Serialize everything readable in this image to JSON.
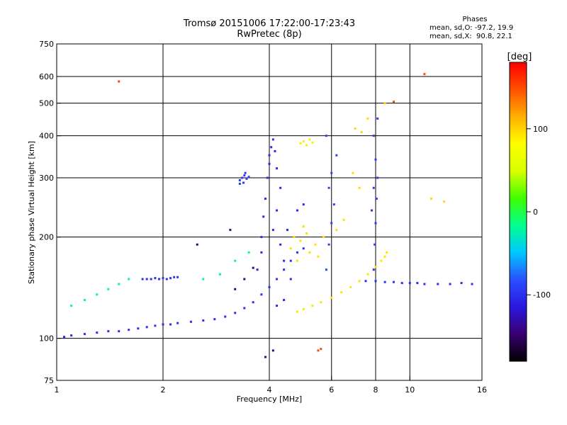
{
  "header": {
    "title": "Tromsø 20151006 17:22:00-17:23:43",
    "subtitle": "RwPretec (8p)"
  },
  "phase_stats": {
    "label": "Phases",
    "o_line": "mean, sd,O: -97.2, 19.9",
    "x_line": "mean, sd,X:  90.8, 22.1"
  },
  "colorbar": {
    "label": "[deg]",
    "ticks": [
      {
        "value": 100,
        "label": "100"
      },
      {
        "value": 0,
        "label": "0"
      },
      {
        "value": -100,
        "label": "-100"
      }
    ],
    "range": [
      -180,
      180
    ],
    "stops": [
      "#000000",
      "#3a0070",
      "#2a18e0",
      "#2a50ff",
      "#00c8ff",
      "#00ff90",
      "#40ff00",
      "#d8ff00",
      "#ffff00",
      "#ffb000",
      "#ff5000",
      "#ff0000"
    ]
  },
  "chart_data": {
    "type": "scatter",
    "xlabel": "Frequency [MHz]",
    "ylabel": "Stationary phase Virtual Height [km]",
    "xscale": "log",
    "yscale": "log",
    "xlim": [
      1,
      16
    ],
    "ylim": [
      75,
      750
    ],
    "xticks": [
      {
        "value": 1,
        "label": "1"
      },
      {
        "value": 2,
        "label": "2"
      },
      {
        "value": 4,
        "label": "4"
      },
      {
        "value": 6,
        "label": "6"
      },
      {
        "value": 8,
        "label": "8"
      },
      {
        "value": 10,
        "label": "10"
      },
      {
        "value": 16,
        "label": "16"
      }
    ],
    "yticks": [
      {
        "value": 75,
        "label": "75"
      },
      {
        "value": 100,
        "label": "100"
      },
      {
        "value": 200,
        "label": "200"
      },
      {
        "value": 300,
        "label": "300"
      },
      {
        "value": 400,
        "label": "400"
      },
      {
        "value": 500,
        "label": "500"
      },
      {
        "value": 600,
        "label": "600"
      },
      {
        "value": 750,
        "label": "750"
      }
    ],
    "grid_x": [
      2,
      4,
      6,
      8,
      10
    ],
    "grid_y": [
      100,
      200,
      300,
      400,
      500,
      600
    ],
    "point_groups": [
      {
        "name": "o-trace-F",
        "phase": -100,
        "points": [
          [
            1.05,
            101
          ],
          [
            1.1,
            102
          ],
          [
            1.2,
            103
          ],
          [
            1.3,
            104
          ],
          [
            1.4,
            105
          ],
          [
            1.5,
            105
          ],
          [
            1.6,
            106
          ],
          [
            1.7,
            107
          ],
          [
            1.8,
            108
          ],
          [
            1.9,
            109
          ],
          [
            2.0,
            110
          ],
          [
            2.1,
            110
          ],
          [
            2.2,
            111
          ],
          [
            2.4,
            112
          ],
          [
            2.6,
            113
          ],
          [
            2.8,
            114
          ],
          [
            3.0,
            116
          ],
          [
            3.2,
            119
          ],
          [
            3.4,
            123
          ],
          [
            3.6,
            128
          ],
          [
            3.8,
            135
          ],
          [
            4.0,
            142
          ],
          [
            4.2,
            150
          ],
          [
            4.4,
            160
          ],
          [
            4.6,
            170
          ],
          [
            4.8,
            180
          ],
          [
            5.0,
            185
          ]
        ]
      },
      {
        "name": "o-cusp-4MHz",
        "phase": -105,
        "points": [
          [
            3.7,
            160
          ],
          [
            3.8,
            180
          ],
          [
            3.8,
            200
          ],
          [
            3.85,
            230
          ],
          [
            3.9,
            260
          ],
          [
            3.95,
            300
          ],
          [
            4.0,
            330
          ],
          [
            4.0,
            350
          ],
          [
            4.05,
            370
          ],
          [
            4.1,
            390
          ],
          [
            4.15,
            360
          ],
          [
            4.2,
            320
          ],
          [
            4.3,
            280
          ],
          [
            4.2,
            240
          ],
          [
            4.1,
            210
          ],
          [
            4.3,
            190
          ],
          [
            4.4,
            170
          ],
          [
            4.6,
            150
          ],
          [
            4.4,
            130
          ],
          [
            4.2,
            125
          ],
          [
            4.5,
            210
          ],
          [
            4.8,
            240
          ],
          [
            5.0,
            250
          ]
        ]
      },
      {
        "name": "o-cloud-300km",
        "phase": -95,
        "points": [
          [
            3.3,
            295
          ],
          [
            3.35,
            300
          ],
          [
            3.4,
            305
          ],
          [
            3.45,
            298
          ],
          [
            3.5,
            302
          ],
          [
            3.38,
            290
          ],
          [
            3.42,
            310
          ],
          [
            3.3,
            288
          ]
        ]
      },
      {
        "name": "o-sporadic-150km",
        "phase": -98,
        "points": [
          [
            1.75,
            150
          ],
          [
            1.8,
            150
          ],
          [
            1.85,
            150
          ],
          [
            1.9,
            151
          ],
          [
            1.95,
            150
          ],
          [
            2.0,
            151
          ],
          [
            2.05,
            150
          ],
          [
            2.1,
            151
          ],
          [
            2.15,
            152
          ],
          [
            2.2,
            152
          ]
        ]
      },
      {
        "name": "o-high-freq-band",
        "phase": -100,
        "points": [
          [
            7.5,
            148
          ],
          [
            8.0,
            148
          ],
          [
            8.5,
            147
          ],
          [
            9.0,
            147
          ],
          [
            9.5,
            146
          ],
          [
            10.0,
            146
          ],
          [
            10.5,
            146
          ],
          [
            11.0,
            145
          ],
          [
            12.0,
            145
          ],
          [
            13.0,
            145
          ],
          [
            14.0,
            146
          ],
          [
            15.0,
            145
          ]
        ]
      },
      {
        "name": "o-column-8MHz",
        "phase": -95,
        "points": [
          [
            7.9,
            160
          ],
          [
            7.95,
            190
          ],
          [
            8.0,
            220
          ],
          [
            8.05,
            260
          ],
          [
            8.1,
            300
          ],
          [
            8.0,
            340
          ],
          [
            7.9,
            400
          ],
          [
            8.1,
            450
          ],
          [
            7.8,
            240
          ],
          [
            7.9,
            280
          ]
        ]
      },
      {
        "name": "o-column-6MHz",
        "phase": -90,
        "points": [
          [
            5.8,
            160
          ],
          [
            5.9,
            190
          ],
          [
            6.0,
            220
          ],
          [
            6.1,
            250
          ],
          [
            5.9,
            280
          ],
          [
            6.0,
            310
          ],
          [
            6.2,
            350
          ],
          [
            5.8,
            400
          ]
        ]
      },
      {
        "name": "x-trace",
        "phase": 92,
        "points": [
          [
            4.8,
            120
          ],
          [
            5.0,
            122
          ],
          [
            5.3,
            125
          ],
          [
            5.6,
            128
          ],
          [
            6.0,
            132
          ],
          [
            6.4,
            137
          ],
          [
            6.8,
            142
          ],
          [
            7.2,
            148
          ],
          [
            7.6,
            155
          ],
          [
            8.0,
            163
          ],
          [
            8.3,
            170
          ],
          [
            8.5,
            175
          ],
          [
            8.6,
            180
          ]
        ]
      },
      {
        "name": "x-cloud-180km",
        "phase": 95,
        "points": [
          [
            4.6,
            185
          ],
          [
            4.9,
            195
          ],
          [
            5.1,
            205
          ],
          [
            5.4,
            190
          ],
          [
            5.7,
            200
          ],
          [
            5.2,
            180
          ],
          [
            5.5,
            175
          ],
          [
            4.8,
            170
          ],
          [
            6.2,
            210
          ],
          [
            6.5,
            225
          ],
          [
            5.0,
            215
          ],
          [
            4.7,
            200
          ]
        ]
      },
      {
        "name": "x-upper-380km",
        "phase": 90,
        "points": [
          [
            4.9,
            380
          ],
          [
            5.0,
            385
          ],
          [
            5.1,
            375
          ],
          [
            5.2,
            390
          ],
          [
            5.3,
            382
          ]
        ]
      },
      {
        "name": "x-scattered",
        "phase": 98,
        "points": [
          [
            7.0,
            420
          ],
          [
            7.3,
            410
          ],
          [
            7.6,
            450
          ],
          [
            6.9,
            310
          ],
          [
            7.2,
            280
          ],
          [
            11.5,
            260
          ],
          [
            12.5,
            255
          ],
          [
            8.5,
            500
          ]
        ]
      },
      {
        "name": "mixed-low",
        "phase": -20,
        "points": [
          [
            1.1,
            125
          ],
          [
            1.2,
            130
          ],
          [
            1.3,
            135
          ],
          [
            1.4,
            140
          ],
          [
            1.5,
            145
          ],
          [
            1.6,
            150
          ],
          [
            2.6,
            150
          ],
          [
            2.9,
            155
          ],
          [
            3.2,
            170
          ],
          [
            3.5,
            180
          ]
        ]
      },
      {
        "name": "red-outliers",
        "phase": 150,
        "points": [
          [
            1.5,
            580
          ],
          [
            11.0,
            610
          ],
          [
            9.0,
            505
          ],
          [
            5.5,
            92
          ],
          [
            5.6,
            93
          ]
        ]
      },
      {
        "name": "purple-dots",
        "phase": -140,
        "points": [
          [
            3.2,
            140
          ],
          [
            3.4,
            150
          ],
          [
            3.6,
            162
          ],
          [
            2.5,
            190
          ],
          [
            3.1,
            210
          ],
          [
            4.1,
            92
          ],
          [
            3.9,
            88
          ]
        ]
      }
    ]
  }
}
